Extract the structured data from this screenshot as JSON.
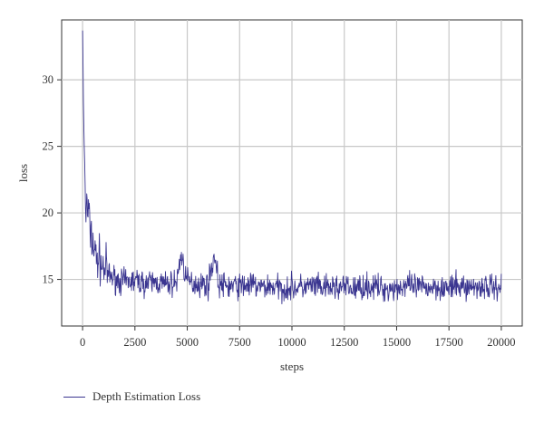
{
  "chart_data": {
    "type": "line",
    "xlabel": "steps",
    "ylabel": "loss",
    "xlim": [
      -1000,
      21000
    ],
    "ylim": [
      11.5,
      34.5
    ],
    "x_ticks": [
      0,
      2500,
      5000,
      7500,
      10000,
      12500,
      15000,
      17500,
      20000
    ],
    "x_tick_labels": [
      "0",
      "2500",
      "5000",
      "7500",
      "10000",
      "12500",
      "15000",
      "17500",
      "20000"
    ],
    "y_ticks": [
      15,
      20,
      25,
      30
    ],
    "y_tick_labels": [
      "15",
      "20",
      "25",
      "30"
    ],
    "grid": true,
    "legend_position": "bottom-left",
    "series": [
      {
        "name": "Depth Estimation Loss",
        "color": "#3a3590",
        "x": [
          0,
          50,
          100,
          150,
          200,
          250,
          300,
          350,
          400,
          450,
          500,
          600,
          700,
          800,
          900,
          1000,
          1100,
          1200,
          1400,
          1600,
          1800,
          2000,
          2500,
          3000,
          3500,
          4000,
          4500,
          4700,
          5000,
          5500,
          6000,
          6300,
          6500,
          7000,
          7500,
          8000,
          8500,
          9000,
          9500,
          10000,
          10500,
          11000,
          11500,
          12000,
          12500,
          13000,
          13500,
          14000,
          14500,
          15000,
          15500,
          16000,
          16500,
          17000,
          17500,
          18000,
          18500,
          19000,
          19500,
          20000
        ],
        "values": [
          33.7,
          27.0,
          23.8,
          19.5,
          20.9,
          19.6,
          20.4,
          18.2,
          18.8,
          17.6,
          17.8,
          16.9,
          16.5,
          16.6,
          16.0,
          15.8,
          15.9,
          15.4,
          15.2,
          15.0,
          14.9,
          14.8,
          14.9,
          14.7,
          14.8,
          14.6,
          14.8,
          16.9,
          14.8,
          14.7,
          14.6,
          16.9,
          14.6,
          14.5,
          14.5,
          14.6,
          14.4,
          14.5,
          14.3,
          14.4,
          14.4,
          14.5,
          14.3,
          14.4,
          14.4,
          14.3,
          14.5,
          14.4,
          14.3,
          14.4,
          14.5,
          14.4,
          14.4,
          14.5,
          14.3,
          14.5,
          14.4,
          14.5,
          14.4,
          14.5
        ]
      }
    ]
  }
}
